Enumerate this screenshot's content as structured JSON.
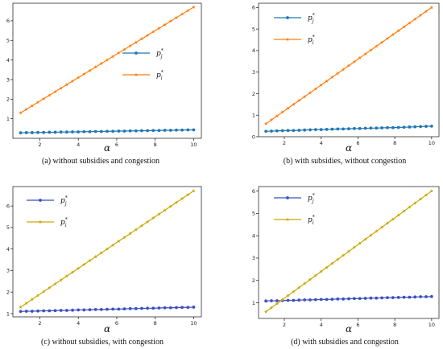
{
  "chart_data": [
    {
      "type": "line",
      "caption": "(a) without subsidies and congestion",
      "xlabel": "α",
      "xlim": [
        0.6,
        10.4
      ],
      "ylim": [
        0,
        6.9
      ],
      "xticks": [
        2,
        4,
        6,
        8,
        10
      ],
      "yticks": [
        1,
        2,
        3,
        4,
        5,
        6
      ],
      "legend_position": "center-right",
      "x": [
        1.0,
        1.3,
        1.6,
        1.9,
        2.2,
        2.5,
        2.8,
        3.1,
        3.4,
        3.7,
        4.0,
        4.3,
        4.6,
        4.9,
        5.2,
        5.5,
        5.8,
        6.1,
        6.4,
        6.7,
        7.0,
        7.3,
        7.6,
        7.9,
        8.2,
        8.5,
        8.8,
        9.1,
        9.4,
        9.7,
        10.0
      ],
      "series": [
        {
          "name": "p*_j",
          "label_main": "p",
          "label_sup": "*",
          "label_sub": "j",
          "color": "#1f77b4",
          "marker": "dot",
          "values": [
            0.28,
            0.29,
            0.29,
            0.3,
            0.3,
            0.31,
            0.31,
            0.32,
            0.32,
            0.33,
            0.33,
            0.34,
            0.34,
            0.35,
            0.35,
            0.36,
            0.36,
            0.37,
            0.37,
            0.38,
            0.38,
            0.39,
            0.39,
            0.4,
            0.4,
            0.41,
            0.41,
            0.42,
            0.42,
            0.43,
            0.43
          ]
        },
        {
          "name": "p*_i",
          "label_main": "p",
          "label_sup": "*",
          "label_sub": "i",
          "color": "#ff7f0e",
          "marker": "star",
          "values": [
            1.3,
            1.48,
            1.66,
            1.84,
            2.02,
            2.2,
            2.38,
            2.56,
            2.74,
            2.92,
            3.1,
            3.28,
            3.46,
            3.64,
            3.82,
            4.0,
            4.18,
            4.36,
            4.54,
            4.72,
            4.9,
            5.08,
            5.26,
            5.44,
            5.62,
            5.8,
            5.98,
            6.16,
            6.34,
            6.52,
            6.7
          ]
        }
      ]
    },
    {
      "type": "line",
      "caption": "(b) with subsidies, without congestion",
      "xlabel": "α",
      "xlim": [
        0.6,
        10.4
      ],
      "ylim": [
        0,
        6.2
      ],
      "xticks": [
        2,
        4,
        6,
        8,
        10
      ],
      "yticks": [
        0,
        1,
        2,
        3,
        4,
        5,
        6
      ],
      "legend_position": "top-left",
      "x": [
        1.0,
        1.3,
        1.6,
        1.9,
        2.2,
        2.5,
        2.8,
        3.1,
        3.4,
        3.7,
        4.0,
        4.3,
        4.6,
        4.9,
        5.2,
        5.5,
        5.8,
        6.1,
        6.4,
        6.7,
        7.0,
        7.3,
        7.6,
        7.9,
        8.2,
        8.5,
        8.8,
        9.1,
        9.4,
        9.7,
        10.0
      ],
      "series": [
        {
          "name": "p*_j",
          "label_main": "p",
          "label_sup": "*",
          "label_sub": "j",
          "color": "#1f77b4",
          "marker": "dot",
          "values": [
            0.25,
            0.26,
            0.27,
            0.28,
            0.29,
            0.29,
            0.3,
            0.31,
            0.32,
            0.33,
            0.33,
            0.34,
            0.35,
            0.36,
            0.36,
            0.37,
            0.38,
            0.38,
            0.39,
            0.4,
            0.4,
            0.41,
            0.42,
            0.42,
            0.43,
            0.44,
            0.45,
            0.46,
            0.47,
            0.48,
            0.49
          ]
        },
        {
          "name": "p*_i",
          "label_main": "p",
          "label_sup": "*",
          "label_sub": "i",
          "color": "#ff7f0e",
          "marker": "star",
          "values": [
            0.6,
            0.78,
            0.96,
            1.14,
            1.32,
            1.5,
            1.68,
            1.86,
            2.04,
            2.22,
            2.4,
            2.58,
            2.76,
            2.94,
            3.12,
            3.3,
            3.48,
            3.66,
            3.84,
            4.02,
            4.2,
            4.38,
            4.56,
            4.74,
            4.92,
            5.1,
            5.28,
            5.46,
            5.64,
            5.82,
            6.0
          ]
        }
      ]
    },
    {
      "type": "line",
      "caption": "(c) without subsidies, with congestion",
      "xlabel": "α",
      "xlim": [
        0.6,
        10.4
      ],
      "ylim": [
        0.85,
        6.9
      ],
      "xticks": [
        2,
        4,
        6,
        8,
        10
      ],
      "yticks": [
        1,
        2,
        3,
        4,
        5,
        6
      ],
      "legend_position": "top-left",
      "x": [
        1.0,
        1.3,
        1.6,
        1.9,
        2.2,
        2.5,
        2.8,
        3.1,
        3.4,
        3.7,
        4.0,
        4.3,
        4.6,
        4.9,
        5.2,
        5.5,
        5.8,
        6.1,
        6.4,
        6.7,
        7.0,
        7.3,
        7.6,
        7.9,
        8.2,
        8.5,
        8.8,
        9.1,
        9.4,
        9.7,
        10.0
      ],
      "series": [
        {
          "name": "p*_j",
          "label_main": "p",
          "label_sup": "*",
          "label_sub": "j",
          "color": "#3b4fc4",
          "marker": "dot",
          "values": [
            1.1,
            1.11,
            1.11,
            1.12,
            1.13,
            1.13,
            1.14,
            1.15,
            1.15,
            1.16,
            1.17,
            1.17,
            1.18,
            1.19,
            1.19,
            1.2,
            1.21,
            1.21,
            1.22,
            1.23,
            1.23,
            1.24,
            1.25,
            1.25,
            1.26,
            1.27,
            1.27,
            1.28,
            1.29,
            1.29,
            1.3
          ]
        },
        {
          "name": "p*_i",
          "label_main": "p",
          "label_sup": "*",
          "label_sub": "i",
          "color": "#c9a800",
          "marker": "star",
          "values": [
            1.3,
            1.48,
            1.66,
            1.84,
            2.02,
            2.2,
            2.38,
            2.56,
            2.74,
            2.92,
            3.1,
            3.28,
            3.46,
            3.64,
            3.82,
            4.0,
            4.18,
            4.36,
            4.54,
            4.72,
            4.9,
            5.08,
            5.26,
            5.44,
            5.62,
            5.8,
            5.98,
            6.16,
            6.34,
            6.52,
            6.7
          ]
        }
      ]
    },
    {
      "type": "line",
      "caption": "(d) with subsidies and congestion",
      "xlabel": "α",
      "xlim": [
        0.6,
        10.4
      ],
      "ylim": [
        0.3,
        6.2
      ],
      "xticks": [
        2,
        4,
        6,
        8,
        10
      ],
      "yticks": [
        1,
        2,
        3,
        4,
        5,
        6
      ],
      "legend_position": "top-left",
      "x": [
        1.0,
        1.3,
        1.6,
        1.9,
        2.2,
        2.5,
        2.8,
        3.1,
        3.4,
        3.7,
        4.0,
        4.3,
        4.6,
        4.9,
        5.2,
        5.5,
        5.8,
        6.1,
        6.4,
        6.7,
        7.0,
        7.3,
        7.6,
        7.9,
        8.2,
        8.5,
        8.8,
        9.1,
        9.4,
        9.7,
        10.0
      ],
      "series": [
        {
          "name": "p*_j",
          "label_main": "p",
          "label_sup": "*",
          "label_sub": "j",
          "color": "#3b4fc4",
          "marker": "dot",
          "values": [
            1.08,
            1.09,
            1.09,
            1.1,
            1.11,
            1.11,
            1.12,
            1.13,
            1.13,
            1.14,
            1.15,
            1.15,
            1.16,
            1.17,
            1.17,
            1.18,
            1.19,
            1.19,
            1.2,
            1.21,
            1.21,
            1.22,
            1.23,
            1.23,
            1.24,
            1.25,
            1.25,
            1.26,
            1.27,
            1.27,
            1.28
          ]
        },
        {
          "name": "p*_i",
          "label_main": "p",
          "label_sup": "*",
          "label_sub": "i",
          "color": "#c9a800",
          "marker": "star",
          "values": [
            0.6,
            0.78,
            0.96,
            1.14,
            1.32,
            1.5,
            1.68,
            1.86,
            2.04,
            2.22,
            2.4,
            2.58,
            2.76,
            2.94,
            3.12,
            3.3,
            3.48,
            3.66,
            3.84,
            4.02,
            4.2,
            4.38,
            4.56,
            4.74,
            4.92,
            5.1,
            5.28,
            5.46,
            5.64,
            5.82,
            6.0
          ]
        }
      ]
    }
  ]
}
